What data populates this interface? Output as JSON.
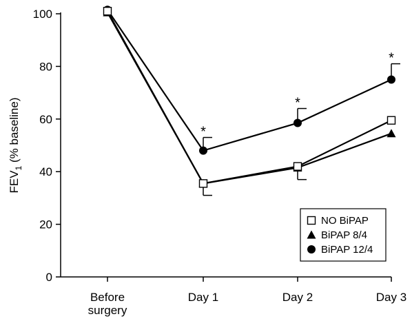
{
  "chart_data": {
    "type": "line",
    "categories": [
      "Before surgery",
      "Day 1",
      "Day 2",
      "Day 3"
    ],
    "ylabel_main": "FEV",
    "ylabel_sub": "1",
    "ylabel_rest": " (% baseline)",
    "ylim": [
      0,
      100
    ],
    "yticks": [
      0,
      20,
      40,
      60,
      80,
      100
    ],
    "grid": false,
    "legend_position": "bottom-right",
    "series": [
      {
        "name": "NO BiPAP",
        "marker": "open-square",
        "values": [
          101,
          35.5,
          42,
          59.5
        ],
        "error_down": [
          null,
          null,
          null,
          null
        ]
      },
      {
        "name": "BiPAP 8/4",
        "marker": "filled-triangle",
        "values": [
          100.5,
          35.5,
          41.5,
          54.5
        ],
        "error_down": [
          null,
          4.5,
          4.5,
          null
        ]
      },
      {
        "name": "BiPAP 12/4",
        "marker": "filled-circle",
        "values": [
          101.5,
          48,
          58.5,
          75
        ],
        "error_up": [
          null,
          5,
          5.5,
          6
        ]
      }
    ],
    "annotations": [
      {
        "category": "Day 1",
        "value": 53,
        "text": "*"
      },
      {
        "category": "Day 2",
        "value": 64,
        "text": "*"
      },
      {
        "category": "Day 3",
        "value": 81,
        "text": "*"
      }
    ],
    "colors": {
      "line": "#000000",
      "background": "#ffffff"
    }
  }
}
